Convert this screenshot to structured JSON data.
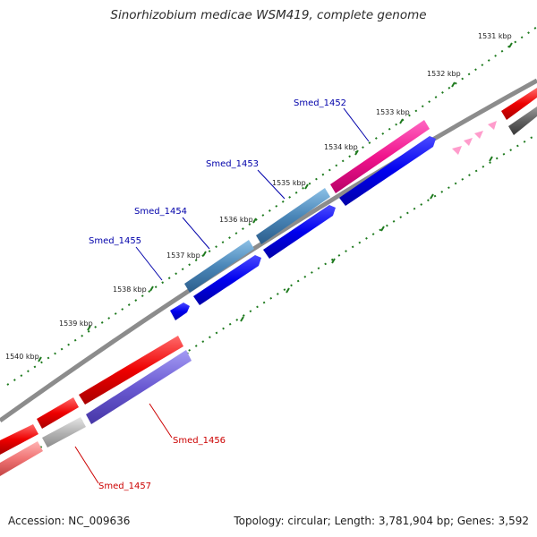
{
  "title": "Sinorhizobium medicae WSM419, complete genome",
  "footer": {
    "accession": "Accession: NC_009636",
    "summary": "Topology: circular; Length: 3,781,904 bp; Genes: 3,592"
  },
  "colors": {
    "backbone": "#8c8c8c",
    "tick": "#1e7a1e",
    "label_forward": "#0000aa",
    "label_reverse": "#cc0000"
  },
  "ticks": [
    "1531 kbp",
    "1532 kbp",
    "1533 kbp",
    "1534 kbp",
    "1535 kbp",
    "1536 kbp",
    "1537 kbp",
    "1538 kbp",
    "1539 kbp",
    "1540 kbp"
  ],
  "gene_labels": [
    {
      "name": "Smed_1452",
      "strand": "forward"
    },
    {
      "name": "Smed_1453",
      "strand": "forward"
    },
    {
      "name": "Smed_1454",
      "strand": "forward"
    },
    {
      "name": "Smed_1455",
      "strand": "forward"
    },
    {
      "name": "Smed_1456",
      "strand": "reverse"
    },
    {
      "name": "Smed_1457",
      "strand": "reverse"
    }
  ]
}
